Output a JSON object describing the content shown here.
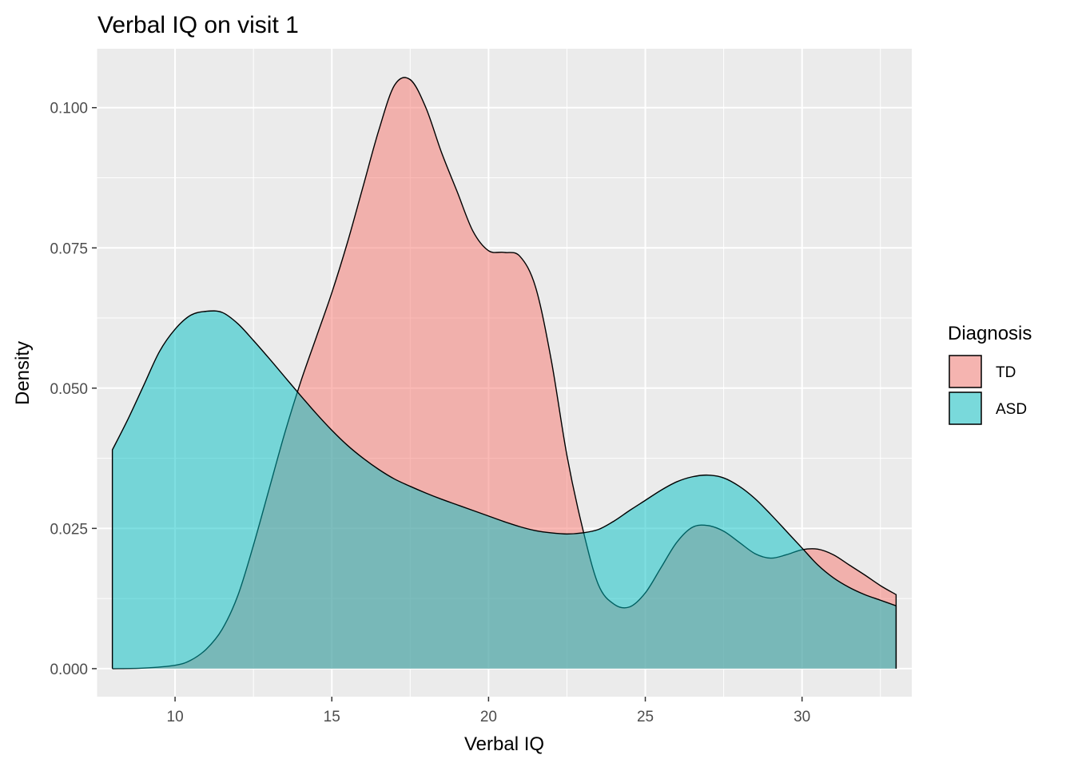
{
  "chart_data": {
    "type": "area",
    "title": "Verbal IQ on visit 1",
    "xlabel": "Verbal IQ",
    "ylabel": "Density",
    "xlim": [
      7.5,
      33.5
    ],
    "ylim": [
      -0.005,
      0.1105
    ],
    "x_ticks": [
      10,
      15,
      20,
      25,
      30
    ],
    "x_tick_labels": [
      "10",
      "15",
      "20",
      "25",
      "30"
    ],
    "y_ticks": [
      0,
      0.025,
      0.05,
      0.075,
      0.1
    ],
    "y_tick_labels": [
      "0.000",
      "0.025",
      "0.050",
      "0.075",
      "0.100"
    ],
    "grid": true,
    "legend": {
      "title": "Diagnosis",
      "position": "right",
      "entries": [
        "TD",
        "ASD"
      ]
    },
    "series": [
      {
        "name": "TD",
        "color": "#F8766D",
        "x": [
          8,
          9,
          10,
          10.5,
          11,
          11.5,
          12,
          12.5,
          13,
          13.5,
          14,
          14.5,
          15,
          15.5,
          16,
          16.5,
          17,
          17.5,
          18,
          18.5,
          19,
          19.5,
          20,
          20.5,
          21,
          21.5,
          22,
          22.5,
          23,
          23.5,
          24,
          24.5,
          25,
          25.5,
          26,
          26.5,
          27,
          27.5,
          28,
          28.5,
          29,
          29.5,
          30,
          30.5,
          31,
          31.5,
          32,
          32.5,
          33
        ],
        "y": [
          0,
          0.0001,
          0.0006,
          0.0015,
          0.0035,
          0.007,
          0.013,
          0.022,
          0.032,
          0.042,
          0.051,
          0.059,
          0.067,
          0.076,
          0.086,
          0.096,
          0.104,
          0.105,
          0.1,
          0.092,
          0.085,
          0.078,
          0.0745,
          0.0742,
          0.0735,
          0.068,
          0.055,
          0.038,
          0.025,
          0.015,
          0.0115,
          0.011,
          0.0135,
          0.018,
          0.0225,
          0.0252,
          0.0255,
          0.0245,
          0.0225,
          0.0205,
          0.0197,
          0.0203,
          0.0212,
          0.0213,
          0.0203,
          0.0185,
          0.0167,
          0.0148,
          0.0132
        ]
      },
      {
        "name": "ASD",
        "color": "#00BFC4",
        "x": [
          8,
          8.5,
          9,
          9.5,
          10,
          10.5,
          11,
          11.5,
          12,
          12.5,
          13,
          13.5,
          14,
          14.5,
          15,
          15.5,
          16,
          16.5,
          17,
          17.5,
          18,
          18.5,
          19,
          19.5,
          20,
          20.5,
          21,
          21.5,
          22,
          22.5,
          23,
          23.5,
          24,
          24.5,
          25,
          25.5,
          26,
          26.5,
          27,
          27.5,
          28,
          28.5,
          29,
          29.5,
          30,
          30.5,
          31,
          31.5,
          32,
          32.5,
          33
        ],
        "y": [
          0.039,
          0.0445,
          0.0505,
          0.0565,
          0.0605,
          0.063,
          0.0637,
          0.0635,
          0.0615,
          0.0585,
          0.0553,
          0.052,
          0.0487,
          0.0455,
          0.0425,
          0.0398,
          0.0375,
          0.0355,
          0.0338,
          0.0325,
          0.0313,
          0.0302,
          0.0292,
          0.0282,
          0.0272,
          0.0262,
          0.0253,
          0.0246,
          0.0242,
          0.024,
          0.0242,
          0.0248,
          0.0263,
          0.0282,
          0.03,
          0.0318,
          0.0333,
          0.0342,
          0.0345,
          0.034,
          0.0325,
          0.0303,
          0.0275,
          0.0245,
          0.0215,
          0.0185,
          0.0162,
          0.0145,
          0.0132,
          0.0122,
          0.0112
        ]
      }
    ]
  }
}
